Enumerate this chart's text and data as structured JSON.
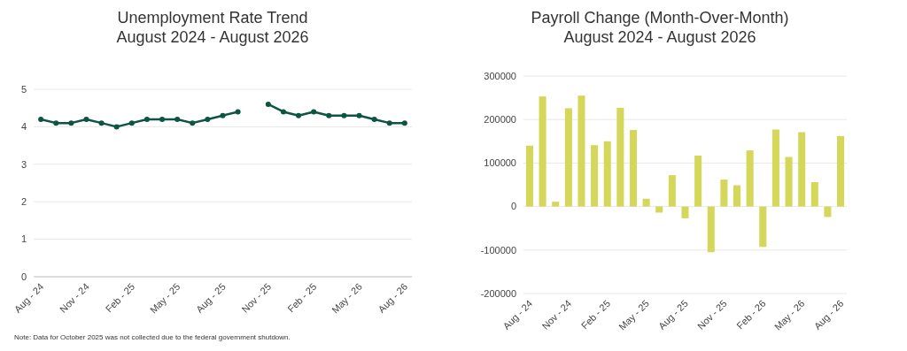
{
  "chart_data": [
    {
      "type": "line",
      "title": "Unemployment Rate Trend\nAugust 2024 - August 2026",
      "categories": [
        "Aug - 24",
        null,
        null,
        "Nov - 24",
        null,
        null,
        "Feb - 25",
        null,
        null,
        "May - 25",
        null,
        null,
        "Aug - 25",
        null,
        null,
        "Nov - 25",
        null,
        null,
        "Feb - 25",
        null,
        null,
        "May - 26",
        null,
        null,
        "Aug - 26"
      ],
      "series": [
        {
          "color": "#0d5443",
          "values": [
            4.2,
            4.1,
            4.1,
            4.2,
            4.1,
            4.0,
            4.1,
            4.2,
            4.2,
            4.2,
            4.1,
            4.2,
            4.3,
            4.4,
            null,
            4.6,
            4.4,
            4.3,
            4.4,
            4.3,
            4.3,
            4.3,
            4.2,
            4.1,
            4.1
          ]
        }
      ],
      "ylim": [
        0,
        5
      ],
      "yticks": [
        0,
        1,
        2,
        3,
        4,
        5
      ],
      "grid": "y",
      "marker": "circle",
      "annotations": [
        "Note: Data for October 2025 was not collected due to the federal government shutdown."
      ]
    },
    {
      "type": "bar",
      "title": "Payroll Change (Month-Over-Month)\nAugust 2024 - August 2026",
      "categories": [
        "Aug - 24",
        null,
        null,
        "Nov - 24",
        null,
        null,
        "Feb - 25",
        null,
        null,
        "May - 25",
        null,
        null,
        "Aug - 25",
        null,
        null,
        "Nov - 25",
        null,
        null,
        "Feb - 26",
        null,
        null,
        "May - 26",
        null,
        null,
        "Aug - 26"
      ],
      "series": [
        {
          "color": "#d4d75a",
          "values": [
            140000,
            253000,
            11000,
            226000,
            255000,
            141000,
            150000,
            227000,
            176000,
            18000,
            -14000,
            72000,
            -27000,
            117000,
            -105000,
            62000,
            49000,
            129000,
            -93000,
            177000,
            114000,
            171000,
            56000,
            -24000,
            162000
          ]
        }
      ],
      "ylim": [
        -200000,
        300000
      ],
      "yticks": [
        -200000,
        -100000,
        0,
        100000,
        200000,
        300000
      ],
      "grid": "y"
    }
  ]
}
